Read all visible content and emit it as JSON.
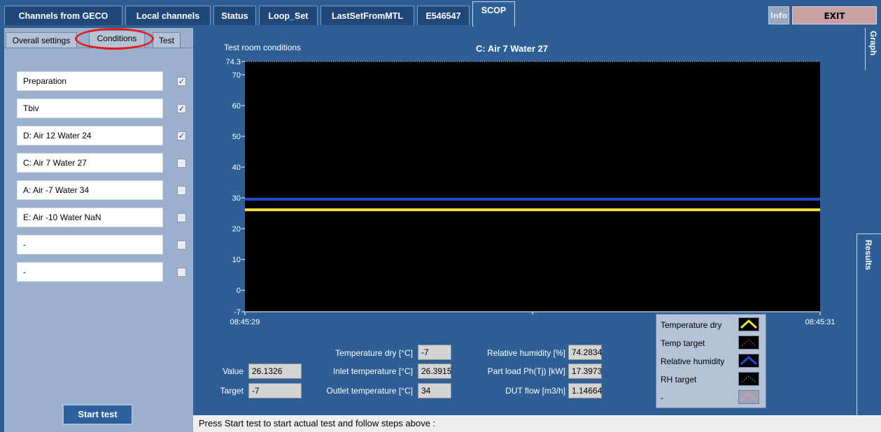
{
  "top_tabs": [
    {
      "label": "Channels from GECO"
    },
    {
      "label": "Local channels"
    },
    {
      "label": "Status"
    },
    {
      "label": "Loop_Set"
    },
    {
      "label": "LastSetFromMTL"
    },
    {
      "label": "E546547"
    },
    {
      "label": "SCOP",
      "active": true
    }
  ],
  "info_label": "Info",
  "exit_label": "EXIT",
  "sub_tabs": [
    {
      "label": "Overall settings"
    },
    {
      "label": "Conditions",
      "active": true
    },
    {
      "label": "Test"
    }
  ],
  "conditions": [
    {
      "label": "Preparation",
      "checked": true
    },
    {
      "label": "Tbiv",
      "checked": true
    },
    {
      "label": "D: Air 12 Water 24",
      "checked": true
    },
    {
      "label": "C: Air 7 Water 27",
      "checked": false
    },
    {
      "label": "A: Air -7 Water 34",
      "checked": false
    },
    {
      "label": "E: Air -10 Water NaN",
      "checked": false
    },
    {
      "label": "-",
      "checked": false
    },
    {
      "label": "-",
      "checked": false
    }
  ],
  "start_button": "Start test",
  "chart_title_left": "Test room conditions",
  "chart_title": "C: Air 7 Water 27",
  "graph_tab": "Graph",
  "results_tab": "Results",
  "chart_data": {
    "type": "line",
    "x_range": [
      "08:45:29",
      "08:45:31"
    ],
    "x_tick_labels": [
      "08:45:29",
      "08:45:31"
    ],
    "y_tick_labels": [
      "74.3",
      "70",
      "60",
      "50",
      "40",
      "30",
      "20",
      "10",
      "0",
      "-7"
    ],
    "ylim": [
      -7,
      74.3
    ],
    "grid": false,
    "series": [
      {
        "name": "Temperature dry",
        "values": [
          26.1326,
          26.1326
        ],
        "color": "#f5e13a"
      },
      {
        "name": "Temp target",
        "values": [
          -7,
          -7
        ],
        "color": "#e8413a"
      },
      {
        "name": "Relative humidity",
        "values": [
          29.6,
          29.6
        ],
        "color": "#1f4bd8"
      },
      {
        "name": "RH target",
        "values": [],
        "color": "#24c2c2"
      },
      {
        "name": "-",
        "values": [],
        "color": "#e29a9a"
      }
    ]
  },
  "readouts": {
    "value_label": "Value",
    "value": "26.1326",
    "target_label": "Target",
    "target": "-7",
    "temp_dry_label": "Temperature dry [°C]",
    "temp_dry": "-7",
    "inlet_label": "Inlet temperature [°C]",
    "inlet": "26.3915",
    "outlet_label": "Outlet temperature [°C]",
    "outlet": "34",
    "rh_label": "Relative humidity [%]",
    "rh": "74.2834",
    "partload_label": "Part load Ph(Tj) [kW]",
    "partload": "17.3973",
    "flow_label": "DUT flow [m3/h]",
    "flow": "1.14664"
  },
  "status_text": "Press Start test to start actual test and follow steps above  :"
}
